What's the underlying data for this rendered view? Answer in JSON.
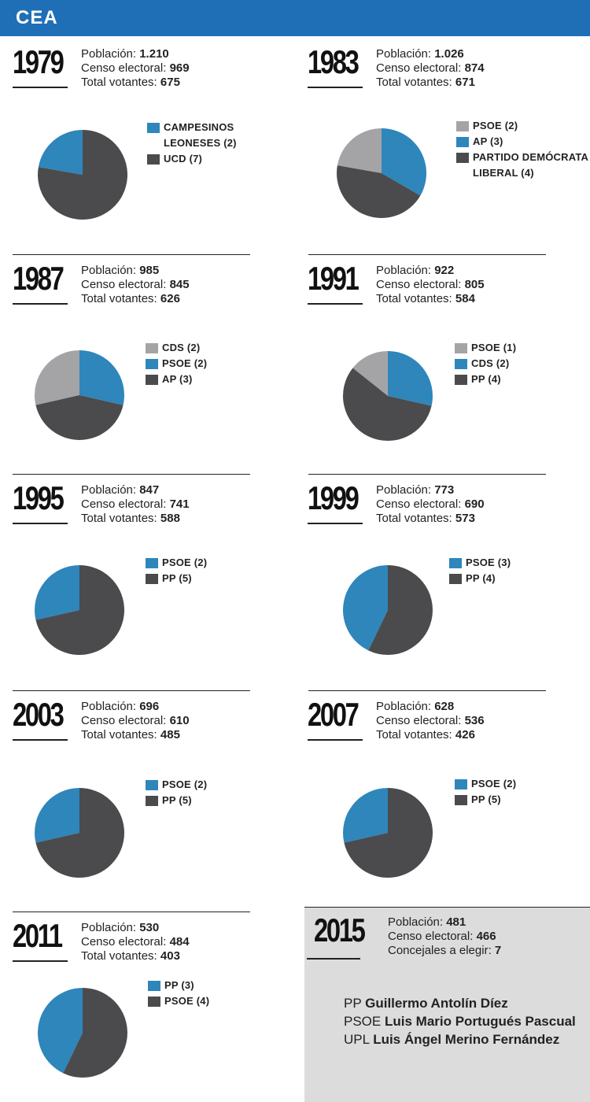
{
  "header": {
    "title": "CEA"
  },
  "colors": {
    "header": "#1f6fb6",
    "blue": "#2e86bb",
    "dark": "#4b4b4d",
    "gray": "#a4a4a6"
  },
  "labels": {
    "poblacion": "Población: ",
    "censo": "Censo electoral: ",
    "votantes": "Total votantes: ",
    "concejales": "Concejales a elegir: "
  },
  "chart_data": [
    {
      "type": "pie",
      "year": "1979",
      "poblacion": "1.210",
      "censo": "969",
      "votantes": "675",
      "slices": [
        {
          "label": "CAMPESINOS LEONESES (2)",
          "value": 2,
          "color": "#2e86bb"
        },
        {
          "label": "UCD (7)",
          "value": 7,
          "color": "#4b4b4d"
        }
      ]
    },
    {
      "type": "pie",
      "year": "1983",
      "poblacion": "1.026",
      "censo": "874",
      "votantes": "671",
      "slices": [
        {
          "label": "PSOE (2)",
          "value": 2,
          "color": "#a4a4a6"
        },
        {
          "label": "AP (3)",
          "value": 3,
          "color": "#2e86bb"
        },
        {
          "label": "PARTIDO DEMÓCRATA LIBERAL (4)",
          "value": 4,
          "color": "#4b4b4d"
        }
      ]
    },
    {
      "type": "pie",
      "year": "1987",
      "poblacion": "985",
      "censo": "845",
      "votantes": "626",
      "slices": [
        {
          "label": "CDS (2)",
          "value": 2,
          "color": "#a4a4a6"
        },
        {
          "label": "PSOE (2)",
          "value": 2,
          "color": "#2e86bb"
        },
        {
          "label": "AP (3)",
          "value": 3,
          "color": "#4b4b4d"
        }
      ]
    },
    {
      "type": "pie",
      "year": "1991",
      "poblacion": "922",
      "censo": "805",
      "votantes": "584",
      "slices": [
        {
          "label": "PSOE (1)",
          "value": 1,
          "color": "#a4a4a6"
        },
        {
          "label": "CDS (2)",
          "value": 2,
          "color": "#2e86bb"
        },
        {
          "label": "PP (4)",
          "value": 4,
          "color": "#4b4b4d"
        }
      ]
    },
    {
      "type": "pie",
      "year": "1995",
      "poblacion": "847",
      "censo": "741",
      "votantes": "588",
      "slices": [
        {
          "label": "PSOE (2)",
          "value": 2,
          "color": "#2e86bb"
        },
        {
          "label": "PP (5)",
          "value": 5,
          "color": "#4b4b4d"
        }
      ]
    },
    {
      "type": "pie",
      "year": "1999",
      "poblacion": "773",
      "censo": "690",
      "votantes": "573",
      "slices": [
        {
          "label": "PSOE (3)",
          "value": 3,
          "color": "#2e86bb"
        },
        {
          "label": "PP (4)",
          "value": 4,
          "color": "#4b4b4d"
        }
      ]
    },
    {
      "type": "pie",
      "year": "2003",
      "poblacion": "696",
      "censo": "610",
      "votantes": "485",
      "slices": [
        {
          "label": "PSOE (2)",
          "value": 2,
          "color": "#2e86bb"
        },
        {
          "label": "PP (5)",
          "value": 5,
          "color": "#4b4b4d"
        }
      ]
    },
    {
      "type": "pie",
      "year": "2007",
      "poblacion": "628",
      "censo": "536",
      "votantes": "426",
      "slices": [
        {
          "label": "PSOE (2)",
          "value": 2,
          "color": "#2e86bb"
        },
        {
          "label": "PP (5)",
          "value": 5,
          "color": "#4b4b4d"
        }
      ]
    },
    {
      "type": "pie",
      "year": "2011",
      "poblacion": "530",
      "censo": "484",
      "votantes": "403",
      "slices": [
        {
          "label": "PP (3)",
          "value": 3,
          "color": "#2e86bb"
        },
        {
          "label": "PSOE (4)",
          "value": 4,
          "color": "#4b4b4d"
        }
      ]
    }
  ],
  "final": {
    "year": "2015",
    "poblacion": "481",
    "censo": "466",
    "concejales": "7",
    "candidates": [
      {
        "party": "PP",
        "name": "Guillermo Antolín Díez"
      },
      {
        "party": "PSOE",
        "name": "Luis Mario Portugués Pascual"
      },
      {
        "party": "UPL",
        "name": "Luis Ángel Merino Fernández"
      }
    ]
  }
}
